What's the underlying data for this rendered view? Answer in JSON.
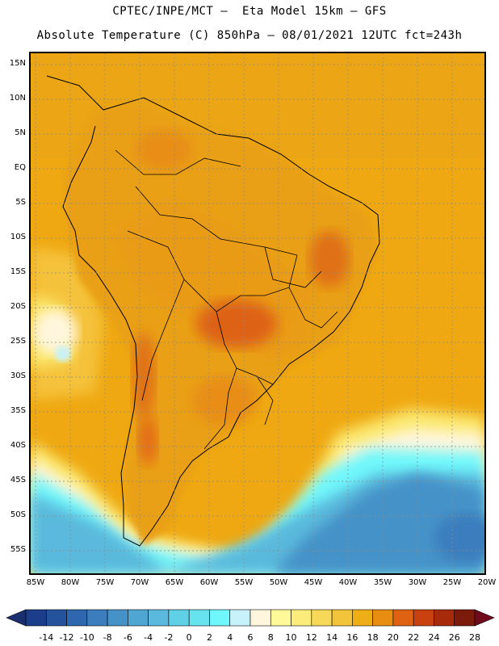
{
  "header": {
    "line1": "CPTEC/INPE/MCT –  Eta Model 15km – GFS",
    "line2": "Absolute Temperature (C) 850hPa – 08/01/2021 12UTC fct=243h"
  },
  "map": {
    "lat_labels": [
      "15N",
      "10N",
      "5N",
      "EQ",
      "5S",
      "10S",
      "15S",
      "20S",
      "25S",
      "30S",
      "35S",
      "40S",
      "45S",
      "50S",
      "55S"
    ],
    "lon_labels": [
      "85W",
      "80W",
      "75W",
      "70W",
      "65W",
      "60W",
      "55W",
      "50W",
      "45W",
      "40W",
      "35W",
      "30W",
      "25W",
      "20W"
    ]
  },
  "colorbar": {
    "labels": [
      "-14",
      "-12",
      "-10",
      "-8",
      "-6",
      "-4",
      "-2",
      "0",
      "2",
      "4",
      "6",
      "8",
      "10",
      "12",
      "14",
      "16",
      "18",
      "20",
      "22",
      "24",
      "26",
      "28"
    ],
    "colors": [
      "#1b3d8a",
      "#25529c",
      "#2f67ae",
      "#3b7dbd",
      "#4592c8",
      "#4fa6d3",
      "#5ab9dc",
      "#5fd0e6",
      "#66e3ef",
      "#6ff7fb",
      "#c8f2fb",
      "#fff6dd",
      "#fff99a",
      "#fbec7c",
      "#f7d95a",
      "#f2c43c",
      "#eeae15",
      "#e78d12",
      "#de6212",
      "#c9410f",
      "#a72a0b",
      "#7a1b0c"
    ]
  }
}
